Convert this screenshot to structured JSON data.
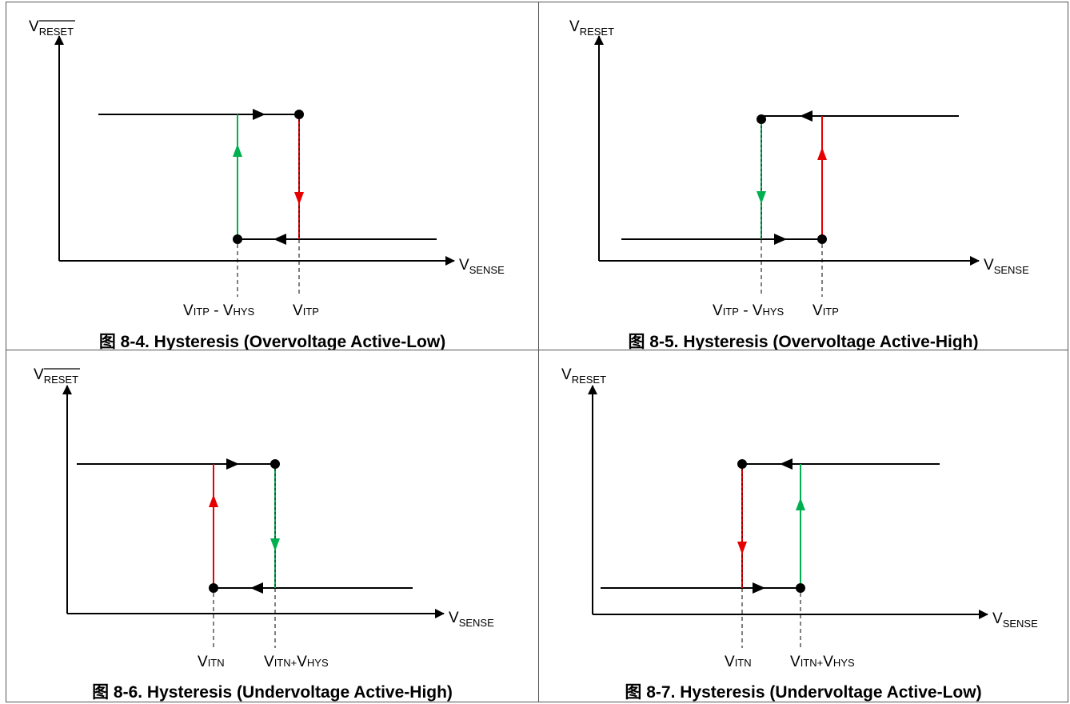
{
  "colors": {
    "black": "#000000",
    "red": "#e60000",
    "green": "#00b050",
    "frame": "#555555"
  },
  "labels": {
    "v": "V",
    "reset": "RESET",
    "sense": "SENSE",
    "itp": "ITP",
    "itn": "ITN",
    "hys": "HYS",
    "minus": " - ",
    "plus": "+"
  },
  "figures": [
    {
      "caption": "图 8-4. Hysteresis (Overvoltage Active-Low)",
      "reset_bar": true
    },
    {
      "caption": "图 8-5. Hysteresis (Overvoltage Active-High)",
      "reset_bar": false
    },
    {
      "caption": "图 8-6. Hysteresis (Undervoltage Active-High)",
      "reset_bar": true
    },
    {
      "caption": "图 8-7. Hysteresis (Undervoltage Active-Low)",
      "reset_bar": false
    }
  ]
}
